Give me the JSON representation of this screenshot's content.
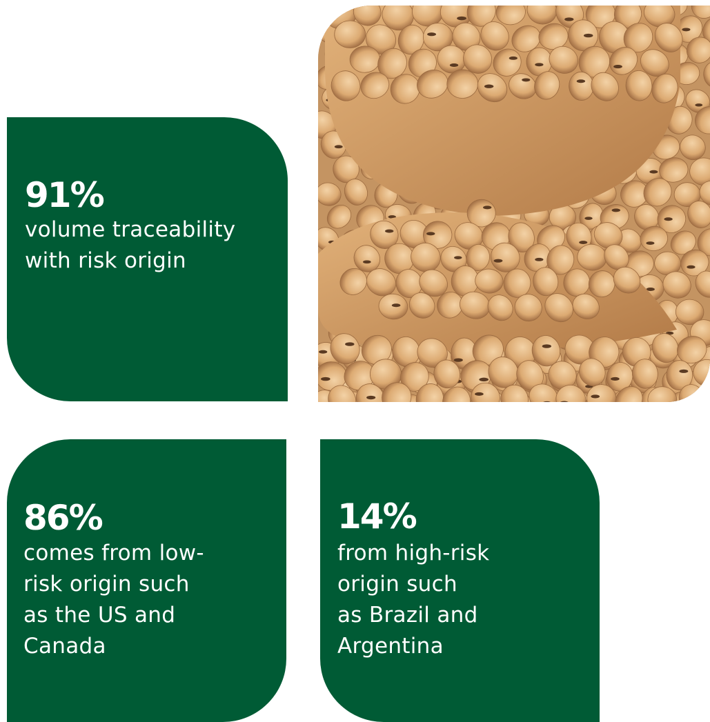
{
  "cards": [
    {
      "stat": "91%",
      "lines": [
        "volume traceability",
        "with risk origin"
      ]
    },
    {
      "stat": "86%",
      "lines": [
        "comes from low-",
        "risk origin such",
        "as the US and",
        "Canada"
      ]
    },
    {
      "stat": "14%",
      "lines": [
        "from high-risk",
        "origin such",
        "as Brazil and",
        "Argentina"
      ]
    }
  ]
}
